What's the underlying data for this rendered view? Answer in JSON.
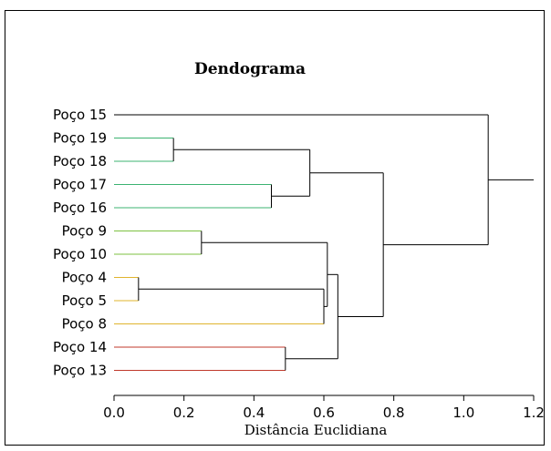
{
  "chart_data": {
    "type": "dendrogram",
    "title": "Dendograma",
    "xlabel": "Distância Euclidiana",
    "ylabel": "",
    "xlim": [
      0.0,
      1.2
    ],
    "xticks": [
      0.0,
      0.2,
      0.4,
      0.6,
      0.8,
      1.0,
      1.2
    ],
    "xtick_labels": [
      "0.0",
      "0.2",
      "0.4",
      "0.6",
      "0.8",
      "1.0",
      "1.2"
    ],
    "leaves": [
      {
        "label": "Poço 15",
        "color": "#000000"
      },
      {
        "label": "Poço 19",
        "color": "#3cb371"
      },
      {
        "label": "Poço 18",
        "color": "#3cb371"
      },
      {
        "label": "Poço 17",
        "color": "#3cb371"
      },
      {
        "label": "Poço 16",
        "color": "#3cb371"
      },
      {
        "label": "Poço 9",
        "color": "#7dc242"
      },
      {
        "label": "Poço 10",
        "color": "#7dc242"
      },
      {
        "label": "Poço 4",
        "color": "#e0b42e"
      },
      {
        "label": "Poço 5",
        "color": "#e0b42e"
      },
      {
        "label": "Poço 8",
        "color": "#e0b42e"
      },
      {
        "label": "Poço 14",
        "color": "#c0392b"
      },
      {
        "label": "Poço 13",
        "color": "#c0392b"
      }
    ],
    "merges": [
      {
        "id": "m1",
        "children": [
          "Poço 4",
          "Poço 5"
        ],
        "height": 0.07
      },
      {
        "id": "m2",
        "children": [
          "Poço 19",
          "Poço 18"
        ],
        "height": 0.17
      },
      {
        "id": "m3",
        "children": [
          "Poço 9",
          "Poço 10"
        ],
        "height": 0.25
      },
      {
        "id": "m4",
        "children": [
          "Poço 17",
          "Poço 16"
        ],
        "height": 0.45
      },
      {
        "id": "m5",
        "children": [
          "Poço 14",
          "Poço 13"
        ],
        "height": 0.49
      },
      {
        "id": "m6",
        "children": [
          "m2",
          "m4"
        ],
        "height": 0.56
      },
      {
        "id": "m7",
        "children": [
          "m1",
          "Poço 8"
        ],
        "height": 0.6
      },
      {
        "id": "m8",
        "children": [
          "m3",
          "m7"
        ],
        "height": 0.61
      },
      {
        "id": "m9",
        "children": [
          "m8",
          "m5"
        ],
        "height": 0.64
      },
      {
        "id": "m10",
        "children": [
          "m6",
          "m9"
        ],
        "height": 0.77
      },
      {
        "id": "m11",
        "children": [
          "Poço 15",
          "m10"
        ],
        "height": 1.07
      }
    ],
    "root_stub_to": 1.2
  }
}
